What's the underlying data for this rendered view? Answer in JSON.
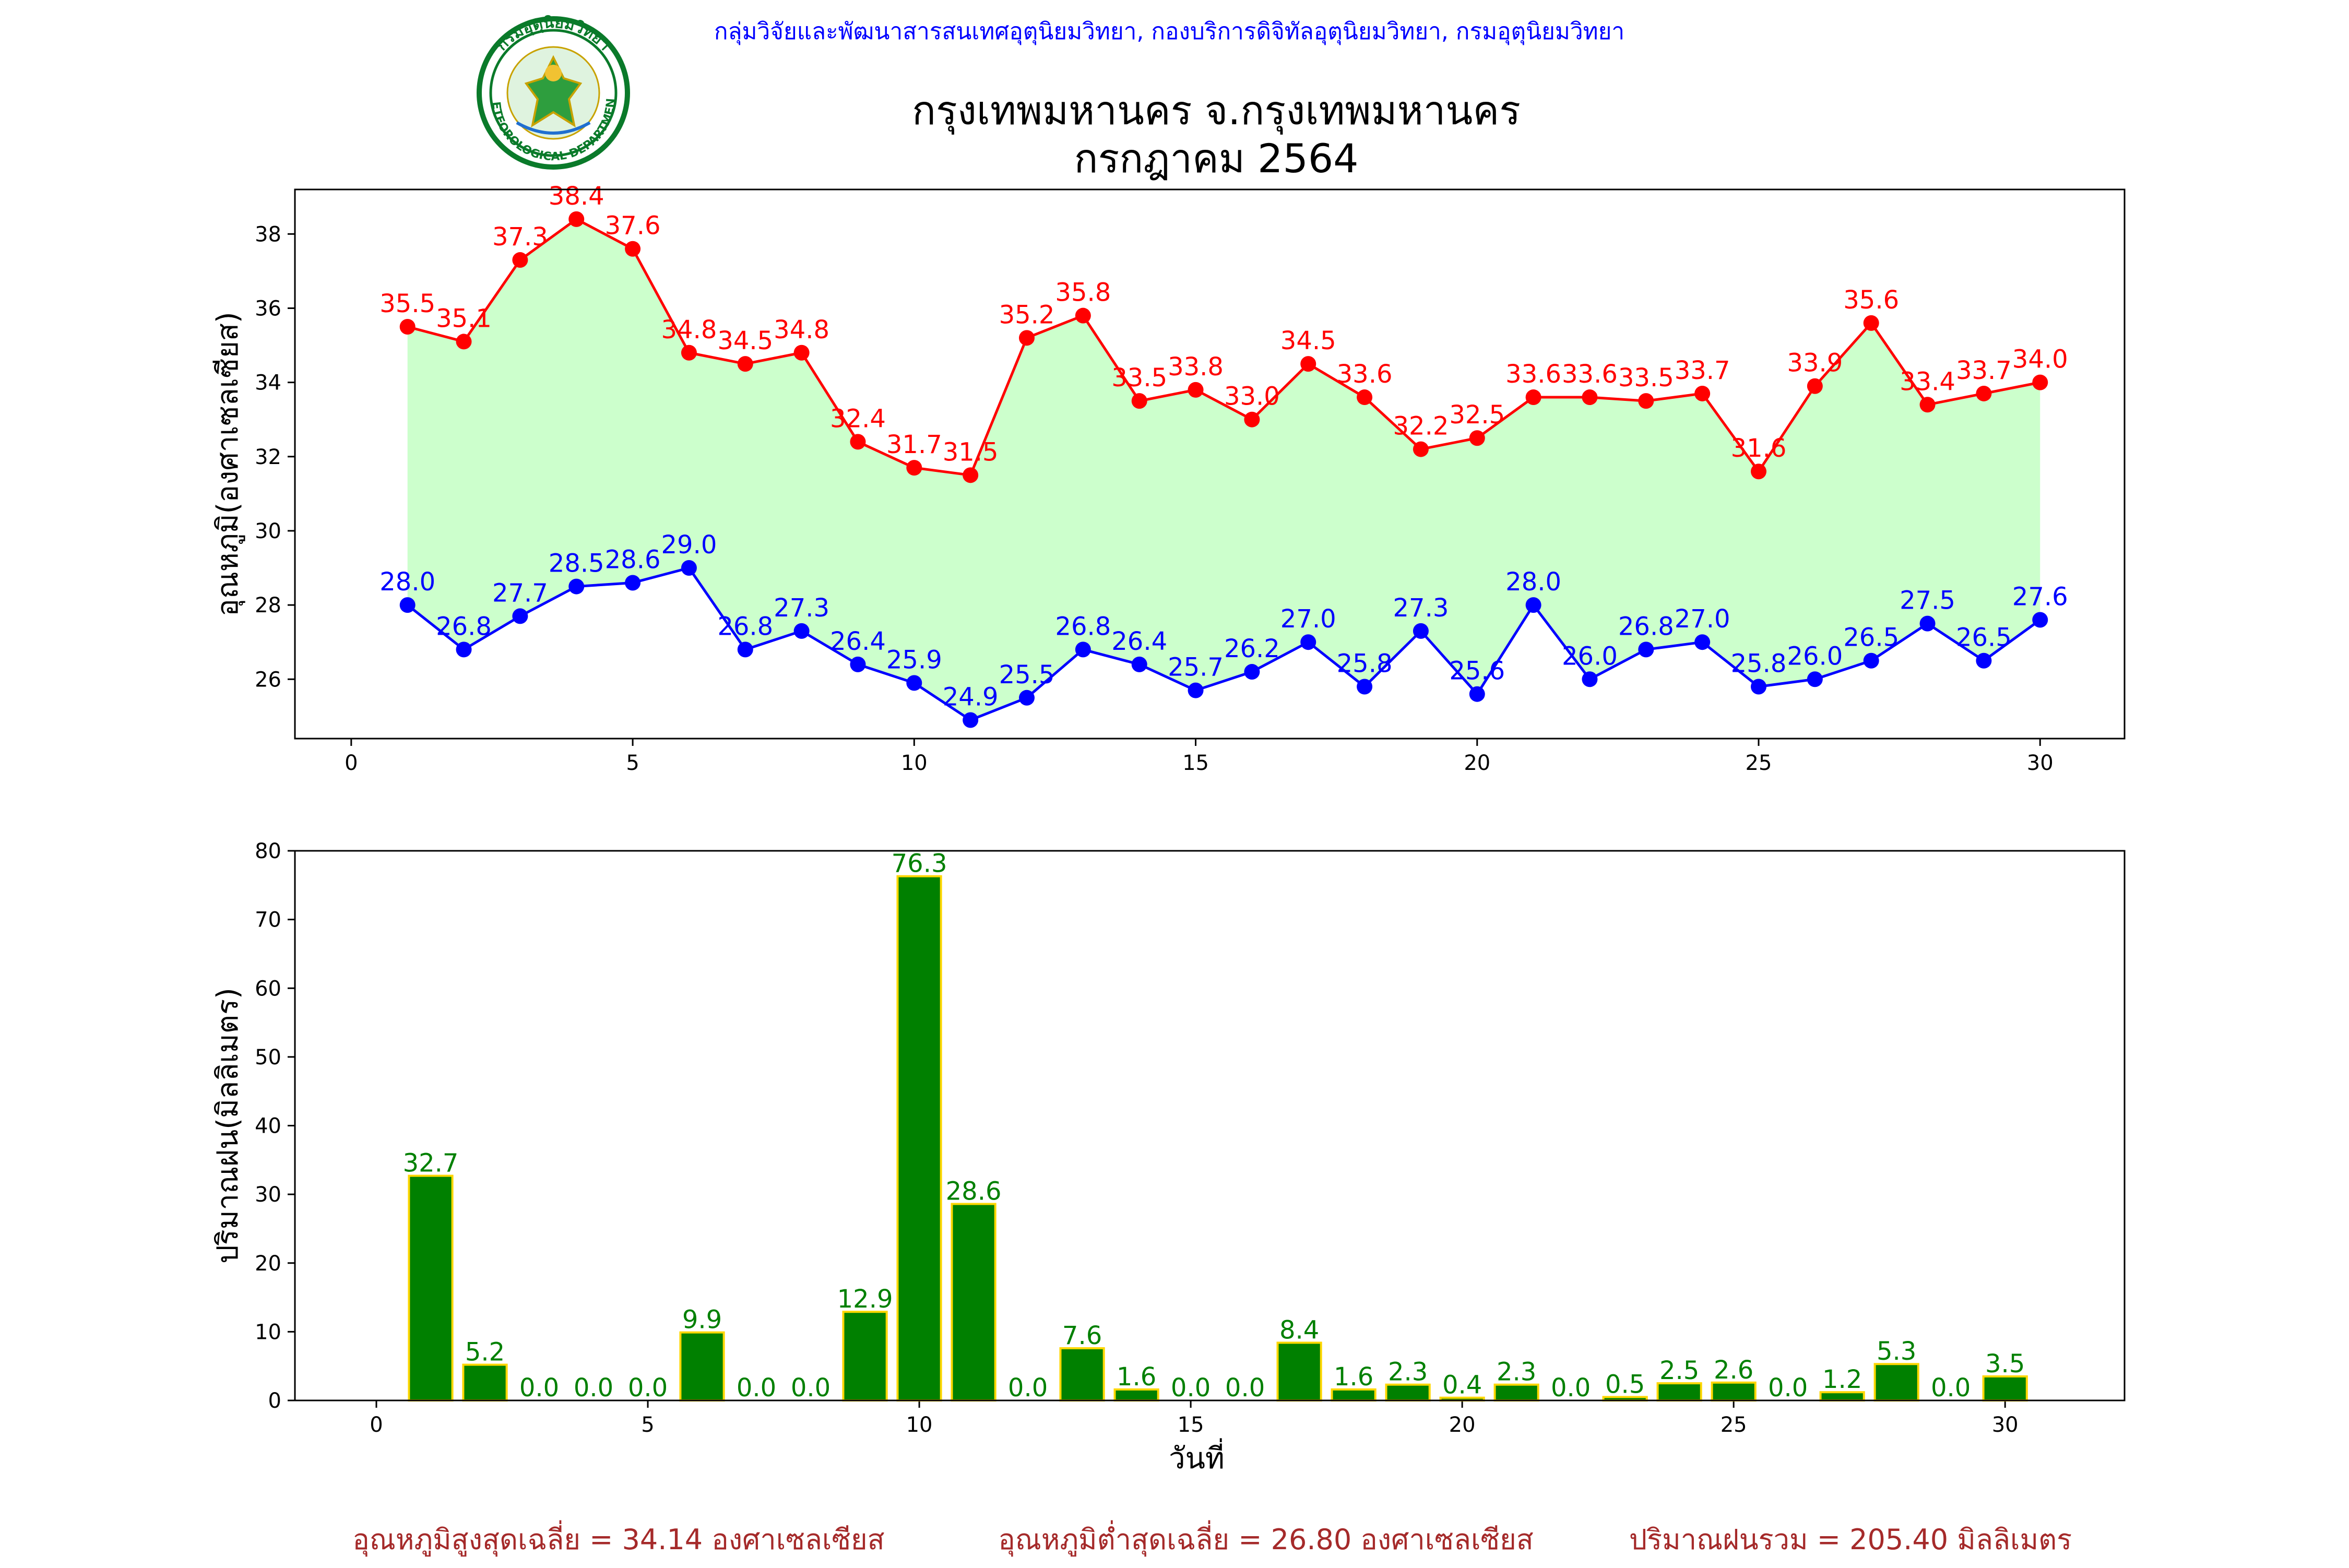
{
  "header": {
    "agency": "กลุ่มวิจัยและพัฒนาสารสนเทศอุตุนิยมวิทยา, กองบริการดิจิทัลอุตุนิยมวิทยา, กรมอุตุนิยมวิทยา",
    "title_line1": "กรุงเทพมหานคร จ.กรุงเทพมหานคร",
    "title_line2": "กรกฎาคม 2564"
  },
  "logo": {
    "top_text": "กรมอุตุนิยมวิทยา",
    "bottom_text": "METEOROLOGICAL DEPARTMENT",
    "ring_color": "#0a7a2a"
  },
  "summary": {
    "avg_max": "อุณหภูมิสูงสุดเฉลี่ย = 34.14 องศาเซลเซียส",
    "avg_min": "อุณหภูมิต่ำสุดเฉลี่ย = 26.80 องศาเซลเซียส",
    "rain_total": "ปริมาณฝนรวม = 205.40 มิลลิเมตร"
  },
  "colors": {
    "max": "#ff0000",
    "min": "#0000ff",
    "fill": "#ccffcc",
    "bar": "#008000",
    "bar_edge": "#ffd700",
    "agency_text": "#0000ff",
    "summary_text": "#a52a2a"
  },
  "chart_data": [
    {
      "type": "line",
      "ylabel": "อุณหภูมิ(องศาเซลเซียส)",
      "xlabel": "",
      "xlim": [
        -1,
        31.5
      ],
      "ylim": [
        24.4,
        39.2
      ],
      "xticks": [
        0,
        5,
        10,
        15,
        20,
        25,
        30
      ],
      "yticks": [
        26,
        28,
        30,
        32,
        34,
        36,
        38
      ],
      "x": [
        1,
        2,
        3,
        4,
        5,
        6,
        7,
        8,
        9,
        10,
        11,
        12,
        13,
        14,
        15,
        16,
        17,
        18,
        19,
        20,
        21,
        22,
        23,
        24,
        25,
        26,
        27,
        28,
        29,
        30
      ],
      "series": [
        {
          "values": [
            35.5,
            35.1,
            37.3,
            38.4,
            37.6,
            34.8,
            34.5,
            34.8,
            32.4,
            31.7,
            31.5,
            35.2,
            35.8,
            33.5,
            33.8,
            33.0,
            34.5,
            33.6,
            32.2,
            32.5,
            33.6,
            33.6,
            33.5,
            33.7,
            31.6,
            33.9,
            35.6,
            33.4,
            33.7,
            34.0
          ]
        },
        {
          "values": [
            28.0,
            26.8,
            27.7,
            28.5,
            28.6,
            29.0,
            26.8,
            27.3,
            26.4,
            25.9,
            24.9,
            25.5,
            26.8,
            26.4,
            25.7,
            26.2,
            27.0,
            25.8,
            27.3,
            25.6,
            28.0,
            26.0,
            26.8,
            27.0,
            25.8,
            26.0,
            26.5,
            27.5,
            26.5,
            27.6
          ]
        }
      ],
      "grid": false
    },
    {
      "type": "bar",
      "ylabel": "ปริมาณฝน(มิลลิเมตร)",
      "xlabel": "วันที่",
      "xlim": [
        -1.5,
        32.2
      ],
      "ylim": [
        0,
        80
      ],
      "xticks": [
        0,
        5,
        10,
        15,
        20,
        25,
        30
      ],
      "yticks": [
        0,
        10,
        20,
        30,
        40,
        50,
        60,
        70,
        80
      ],
      "x": [
        1,
        2,
        3,
        4,
        5,
        6,
        7,
        8,
        9,
        10,
        11,
        12,
        13,
        14,
        15,
        16,
        17,
        18,
        19,
        20,
        21,
        22,
        23,
        24,
        25,
        26,
        27,
        28,
        29,
        30
      ],
      "values": [
        32.7,
        5.2,
        0.0,
        0.0,
        0.0,
        9.9,
        0.0,
        0.0,
        12.9,
        76.3,
        28.6,
        0.0,
        7.6,
        1.6,
        0.0,
        0.0,
        8.4,
        1.6,
        2.3,
        0.4,
        2.3,
        0.0,
        0.5,
        2.5,
        2.6,
        0.0,
        1.2,
        5.3,
        0.0,
        3.5
      ],
      "grid": false
    }
  ]
}
